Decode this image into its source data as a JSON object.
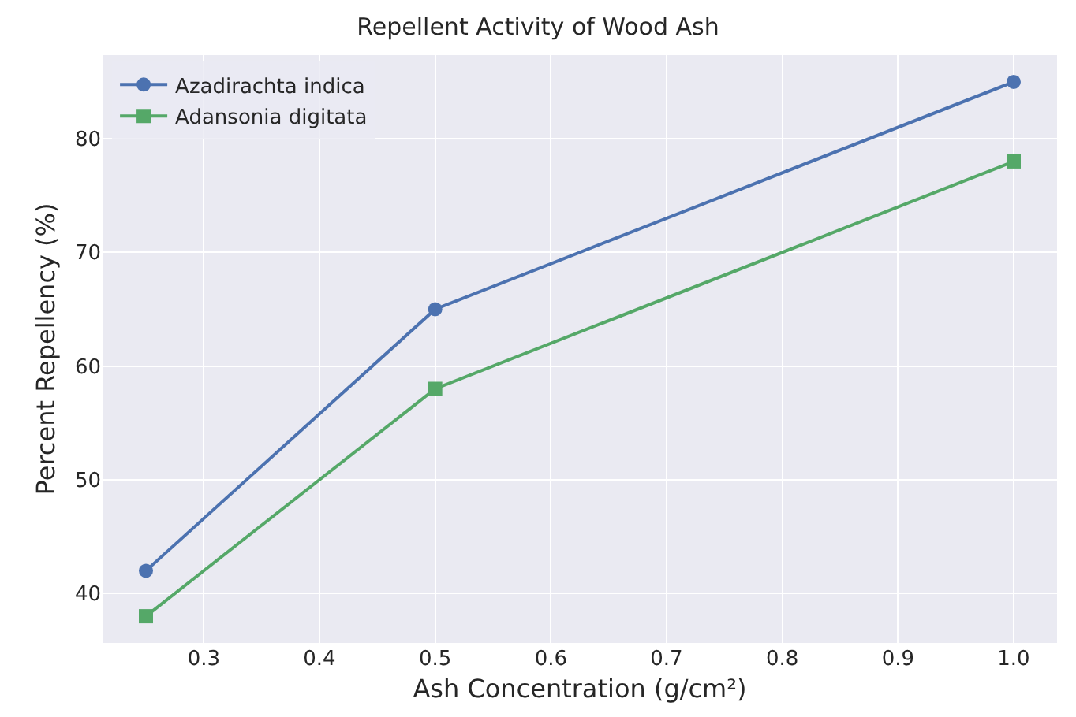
{
  "chart_data": {
    "type": "line",
    "title": "Repellent Activity of Wood Ash",
    "xlabel": "Ash Concentration (g/cm²)",
    "ylabel": "Percent Repellency (%)",
    "x": [
      0.25,
      0.5,
      1.0
    ],
    "series": [
      {
        "name": "Azadirachta indica",
        "color": "#4c72b0",
        "values": [
          42,
          65,
          85
        ],
        "marker": "circle"
      },
      {
        "name": "Adansonia digitata",
        "color": "#55a868",
        "values": [
          38,
          58,
          78
        ],
        "marker": "square"
      }
    ],
    "xlim": [
      0.2125,
      1.0375
    ],
    "xticks": [
      {
        "value": 0.3,
        "label": "0.3"
      },
      {
        "value": 0.4,
        "label": "0.4"
      },
      {
        "value": 0.5,
        "label": "0.5"
      },
      {
        "value": 0.6,
        "label": "0.6"
      },
      {
        "value": 0.7,
        "label": "0.7"
      },
      {
        "value": 0.8,
        "label": "0.8"
      },
      {
        "value": 0.9,
        "label": "0.9"
      },
      {
        "value": 1.0,
        "label": "1.0"
      }
    ],
    "ylim": [
      35.65,
      87.35
    ],
    "yticks": [
      40,
      50,
      60,
      70,
      80
    ],
    "grid": true,
    "legend": "top left",
    "line_style": "solid"
  }
}
